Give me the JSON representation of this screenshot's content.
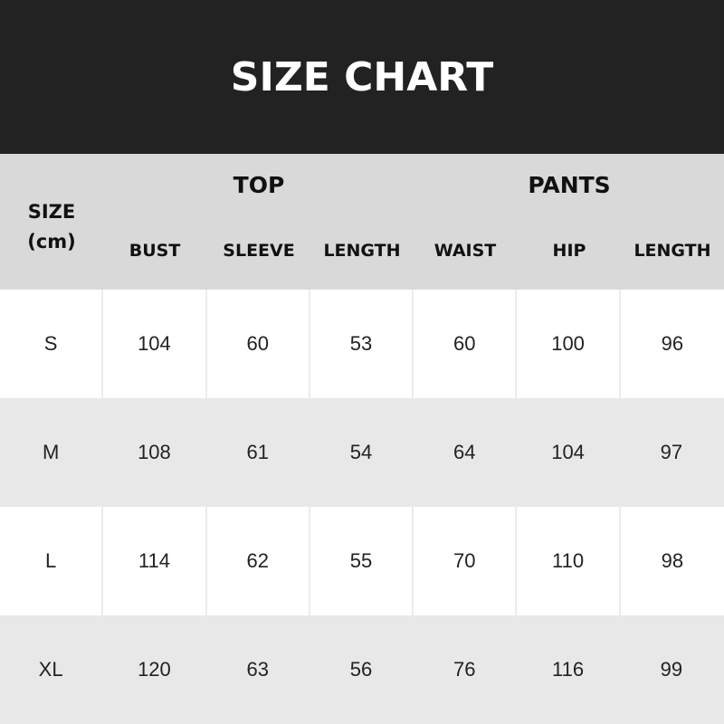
{
  "title": "SIZE CHART",
  "chart_data": {
    "type": "table",
    "title": "SIZE CHART",
    "size_header": [
      "SIZE",
      "(cm)"
    ],
    "groups": [
      {
        "label": "TOP",
        "columns": [
          "BUST",
          "SLEEVE",
          "LENGTH"
        ]
      },
      {
        "label": "PANTS",
        "columns": [
          "WAIST",
          "HIP",
          "LENGTH"
        ]
      }
    ],
    "rows": [
      {
        "size": "S",
        "values": [
          104,
          60,
          53,
          60,
          100,
          96
        ]
      },
      {
        "size": "M",
        "values": [
          108,
          61,
          54,
          64,
          104,
          97
        ]
      },
      {
        "size": "L",
        "values": [
          114,
          62,
          55,
          70,
          110,
          98
        ]
      },
      {
        "size": "XL",
        "values": [
          120,
          63,
          56,
          76,
          116,
          99
        ]
      }
    ]
  },
  "colors": {
    "banner": "#222222",
    "header": "#d9d9d9",
    "row_alt": "#e8e8e8"
  }
}
